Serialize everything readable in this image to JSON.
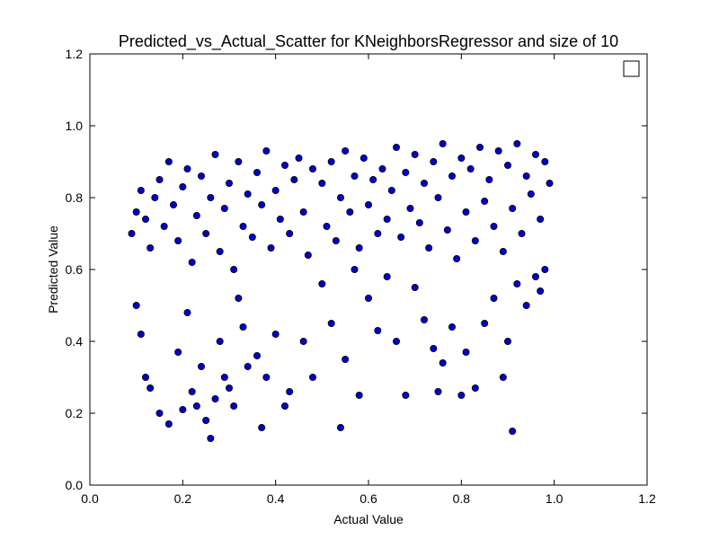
{
  "chart_data": {
    "type": "scatter",
    "title": "Predicted_vs_Actual_Scatter for KNeighborsRegressor and size of 10",
    "xlabel": "Actual Value",
    "ylabel": "Predicted Value",
    "xlim": [
      0.0,
      1.2
    ],
    "ylim": [
      0.0,
      1.2
    ],
    "xticks": [
      "0.0",
      "0.2",
      "0.4",
      "0.6",
      "0.8",
      "1.0",
      "1.2"
    ],
    "yticks": [
      "0.0",
      "0.2",
      "0.4",
      "0.6",
      "0.8",
      "1.0",
      "1.2"
    ],
    "grid": false,
    "legend": "top-right",
    "marker_color": "#0000cc",
    "marker_edge": "#000000",
    "series": [
      {
        "points": [
          [
            0.09,
            0.7
          ],
          [
            0.1,
            0.76
          ],
          [
            0.11,
            0.82
          ],
          [
            0.12,
            0.74
          ],
          [
            0.13,
            0.66
          ],
          [
            0.14,
            0.8
          ],
          [
            0.15,
            0.85
          ],
          [
            0.16,
            0.72
          ],
          [
            0.17,
            0.9
          ],
          [
            0.18,
            0.78
          ],
          [
            0.19,
            0.68
          ],
          [
            0.2,
            0.83
          ],
          [
            0.21,
            0.88
          ],
          [
            0.22,
            0.62
          ],
          [
            0.23,
            0.75
          ],
          [
            0.24,
            0.86
          ],
          [
            0.25,
            0.7
          ],
          [
            0.26,
            0.8
          ],
          [
            0.27,
            0.92
          ],
          [
            0.28,
            0.65
          ],
          [
            0.29,
            0.77
          ],
          [
            0.3,
            0.84
          ],
          [
            0.31,
            0.6
          ],
          [
            0.32,
            0.9
          ],
          [
            0.33,
            0.72
          ],
          [
            0.34,
            0.81
          ],
          [
            0.35,
            0.69
          ],
          [
            0.36,
            0.87
          ],
          [
            0.37,
            0.78
          ],
          [
            0.38,
            0.93
          ],
          [
            0.39,
            0.66
          ],
          [
            0.4,
            0.82
          ],
          [
            0.41,
            0.74
          ],
          [
            0.42,
            0.89
          ],
          [
            0.43,
            0.7
          ],
          [
            0.44,
            0.85
          ],
          [
            0.45,
            0.91
          ],
          [
            0.46,
            0.76
          ],
          [
            0.47,
            0.64
          ],
          [
            0.48,
            0.88
          ],
          [
            0.1,
            0.5
          ],
          [
            0.11,
            0.42
          ],
          [
            0.12,
            0.3
          ],
          [
            0.13,
            0.27
          ],
          [
            0.15,
            0.2
          ],
          [
            0.17,
            0.17
          ],
          [
            0.19,
            0.37
          ],
          [
            0.2,
            0.21
          ],
          [
            0.21,
            0.48
          ],
          [
            0.22,
            0.26
          ],
          [
            0.23,
            0.22
          ],
          [
            0.24,
            0.33
          ],
          [
            0.25,
            0.18
          ],
          [
            0.26,
            0.13
          ],
          [
            0.27,
            0.24
          ],
          [
            0.28,
            0.4
          ],
          [
            0.29,
            0.3
          ],
          [
            0.3,
            0.27
          ],
          [
            0.31,
            0.22
          ],
          [
            0.32,
            0.52
          ],
          [
            0.33,
            0.44
          ],
          [
            0.34,
            0.33
          ],
          [
            0.36,
            0.36
          ],
          [
            0.37,
            0.16
          ],
          [
            0.38,
            0.3
          ],
          [
            0.4,
            0.42
          ],
          [
            0.42,
            0.22
          ],
          [
            0.43,
            0.26
          ],
          [
            0.46,
            0.4
          ],
          [
            0.48,
            0.3
          ],
          [
            0.5,
            0.56
          ],
          [
            0.52,
            0.45
          ],
          [
            0.54,
            0.16
          ],
          [
            0.55,
            0.35
          ],
          [
            0.57,
            0.6
          ],
          [
            0.58,
            0.25
          ],
          [
            0.6,
            0.52
          ],
          [
            0.62,
            0.43
          ],
          [
            0.64,
            0.58
          ],
          [
            0.66,
            0.4
          ],
          [
            0.68,
            0.25
          ],
          [
            0.7,
            0.55
          ],
          [
            0.72,
            0.46
          ],
          [
            0.74,
            0.38
          ],
          [
            0.75,
            0.26
          ],
          [
            0.76,
            0.34
          ],
          [
            0.78,
            0.44
          ],
          [
            0.8,
            0.25
          ],
          [
            0.81,
            0.37
          ],
          [
            0.83,
            0.27
          ],
          [
            0.85,
            0.45
          ],
          [
            0.87,
            0.52
          ],
          [
            0.89,
            0.3
          ],
          [
            0.9,
            0.4
          ],
          [
            0.91,
            0.15
          ],
          [
            0.92,
            0.56
          ],
          [
            0.94,
            0.5
          ],
          [
            0.96,
            0.58
          ],
          [
            0.97,
            0.54
          ],
          [
            0.98,
            0.6
          ],
          [
            0.5,
            0.84
          ],
          [
            0.51,
            0.72
          ],
          [
            0.52,
            0.9
          ],
          [
            0.53,
            0.68
          ],
          [
            0.54,
            0.8
          ],
          [
            0.55,
            0.93
          ],
          [
            0.56,
            0.76
          ],
          [
            0.57,
            0.86
          ],
          [
            0.58,
            0.66
          ],
          [
            0.59,
            0.91
          ],
          [
            0.6,
            0.78
          ],
          [
            0.61,
            0.85
          ],
          [
            0.62,
            0.7
          ],
          [
            0.63,
            0.88
          ],
          [
            0.64,
            0.74
          ],
          [
            0.65,
            0.82
          ],
          [
            0.66,
            0.94
          ],
          [
            0.67,
            0.69
          ],
          [
            0.68,
            0.87
          ],
          [
            0.69,
            0.77
          ],
          [
            0.7,
            0.92
          ],
          [
            0.71,
            0.73
          ],
          [
            0.72,
            0.84
          ],
          [
            0.73,
            0.66
          ],
          [
            0.74,
            0.9
          ],
          [
            0.75,
            0.8
          ],
          [
            0.76,
            0.95
          ],
          [
            0.77,
            0.71
          ],
          [
            0.78,
            0.86
          ],
          [
            0.79,
            0.63
          ],
          [
            0.8,
            0.91
          ],
          [
            0.81,
            0.76
          ],
          [
            0.82,
            0.88
          ],
          [
            0.83,
            0.68
          ],
          [
            0.84,
            0.94
          ],
          [
            0.85,
            0.79
          ],
          [
            0.86,
            0.85
          ],
          [
            0.87,
            0.72
          ],
          [
            0.88,
            0.93
          ],
          [
            0.89,
            0.65
          ],
          [
            0.9,
            0.89
          ],
          [
            0.91,
            0.77
          ],
          [
            0.92,
            0.95
          ],
          [
            0.93,
            0.7
          ],
          [
            0.94,
            0.86
          ],
          [
            0.95,
            0.81
          ],
          [
            0.96,
            0.92
          ],
          [
            0.97,
            0.74
          ],
          [
            0.98,
            0.9
          ],
          [
            0.99,
            0.84
          ]
        ]
      }
    ]
  }
}
